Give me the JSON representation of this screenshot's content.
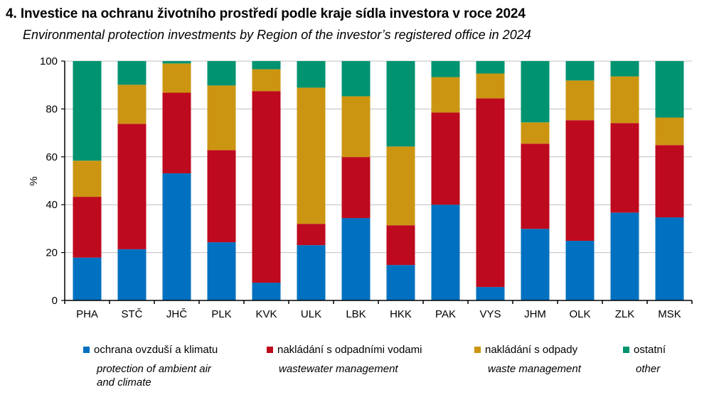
{
  "chart_data": {
    "type": "bar",
    "stacked": true,
    "title": "4. Investice na ochranu životního prostředí podle kraje sídla investora v roce 2024",
    "subtitle": "Environmental protection investments by Region of the investor’s registered office in 2024",
    "xlabel": "",
    "ylabel": "%",
    "ylim": [
      0,
      100
    ],
    "yticks": [
      0,
      20,
      40,
      60,
      80,
      100
    ],
    "grid": true,
    "legend_position": "bottom",
    "categories": [
      "PHA",
      "STČ",
      "JHČ",
      "PLK",
      "KVK",
      "ULK",
      "LBK",
      "HKK",
      "PAK",
      "VYS",
      "JHM",
      "OLK",
      "ZLK",
      "MSK"
    ],
    "series": [
      {
        "name": "ochrana ovzduší a klimatu",
        "name_en": "protection of ambient air and climate",
        "color": "#0070C0",
        "values": [
          17.9,
          21.4,
          53.1,
          24.3,
          7.4,
          23.1,
          34.4,
          14.8,
          40.0,
          5.6,
          29.9,
          24.9,
          36.7,
          34.7
        ]
      },
      {
        "name": "nakládání s odpadními vodami",
        "name_en": "wastewater management",
        "color": "#BE0A1E",
        "values": [
          25.4,
          52.4,
          33.7,
          38.5,
          80.0,
          8.9,
          25.5,
          16.6,
          38.5,
          78.8,
          35.6,
          50.4,
          37.4,
          30.2
        ]
      },
      {
        "name": "nakládání s odpady",
        "name_en": "waste management",
        "color": "#CC9511",
        "values": [
          15.1,
          16.3,
          12.2,
          27.0,
          9.2,
          56.9,
          25.4,
          32.9,
          14.8,
          10.4,
          8.9,
          16.6,
          19.5,
          11.5
        ]
      },
      {
        "name": "ostatní",
        "name_en": "other",
        "color": "#009370",
        "values": [
          41.6,
          9.9,
          1.0,
          10.2,
          3.4,
          11.1,
          14.7,
          35.7,
          6.7,
          5.2,
          25.6,
          8.1,
          6.4,
          23.6
        ]
      }
    ]
  },
  "legend": [
    {
      "cz": "ochrana ovzduší  a klimatu",
      "en_lines": [
        "protection of ambient air",
        "and climate"
      ]
    },
    {
      "cz": "nakládání  s odpadními  vodami",
      "en_lines": [
        "wastewater management"
      ]
    },
    {
      "cz": "nakládání  s odpady",
      "en_lines": [
        "waste management"
      ]
    },
    {
      "cz": "ostatní",
      "en_lines": [
        "other"
      ]
    }
  ]
}
